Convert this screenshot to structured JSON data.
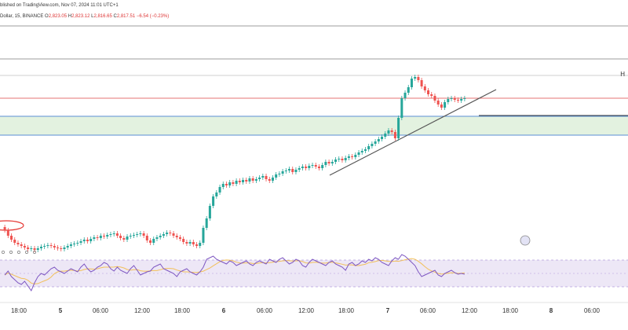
{
  "header": {
    "published": "blished on TradingView.com, Nov 07, 2024 11:01 UTC+1",
    "symbol": "Dollar, 15, BINANCE",
    "open_label": "O",
    "open": "2,823.05",
    "high_label": "H",
    "high": "2,823.12",
    "low_label": "L",
    "low": "2,816.65",
    "close_label": "C",
    "close": "2,817.51",
    "change": "−6.54 (−0.23%)"
  },
  "right_edge_label": "H",
  "colors": {
    "up": "#26a69a",
    "down": "#ef5350",
    "level_gray": "#9e9e9e",
    "level_red": "#e57373",
    "level_blue": "#5b8fd6",
    "zone_fill": "#e3f2e0",
    "trendline": "#555555",
    "rsi_line": "#7e57c2",
    "rsi_ma": "#f2c05a",
    "rsi_band": "#ede7f6"
  },
  "chart_data": {
    "type": "candlestick",
    "x_ticks": [
      "18:00",
      "5",
      "06:00",
      "12:00",
      "18:00",
      "6",
      "06:00",
      "12:00",
      "18:00",
      "7",
      "06:00",
      "12:00",
      "18:00",
      "8",
      "06:00"
    ],
    "candles_close_y": [
      293,
      300,
      305,
      309,
      311,
      313,
      315,
      317,
      316,
      318,
      316,
      314,
      313,
      312,
      313,
      315,
      316,
      317,
      315,
      313,
      311,
      310,
      309,
      307,
      305,
      307,
      304,
      302,
      303,
      300,
      301,
      299,
      298,
      297,
      300,
      303,
      305,
      301,
      300,
      299,
      298,
      297,
      300,
      306,
      309,
      304,
      302,
      300,
      298,
      296,
      297,
      300,
      302,
      304,
      308,
      310,
      308,
      311,
      313,
      309,
      290,
      278,
      262,
      250,
      245,
      238,
      234,
      236,
      232,
      234,
      230,
      232,
      229,
      231,
      227,
      230,
      228,
      226,
      224,
      228,
      230,
      226,
      222,
      221,
      218,
      217,
      215,
      219,
      216,
      214,
      212,
      214,
      211,
      210,
      212,
      214,
      210,
      206,
      208,
      206,
      203,
      202,
      204,
      201,
      199,
      200,
      197,
      194,
      192,
      190,
      186,
      183,
      180,
      177,
      174,
      170,
      166,
      168,
      176,
      150,
      125,
      118,
      111,
      100,
      98,
      102,
      110,
      115,
      120,
      122,
      128,
      133,
      137,
      130,
      126,
      125,
      127,
      128,
      126,
      125
    ],
    "support_zone": "green horizontal zone",
    "indicator": {
      "name": "RSI",
      "values": [
        350,
        345,
        352,
        356,
        360,
        362,
        358,
        364,
        370,
        360,
        352,
        348,
        350,
        346,
        342,
        340,
        344,
        346,
        348,
        345,
        342,
        344,
        346,
        340,
        336,
        342,
        346,
        344,
        340,
        338,
        334,
        336,
        342,
        345,
        340,
        344,
        346,
        348,
        342,
        338,
        344,
        350,
        348,
        346,
        345,
        340,
        338,
        336,
        342,
        344,
        346,
        348,
        352,
        346,
        344,
        342,
        346,
        348,
        350,
        346,
        340,
        330,
        328,
        326,
        330,
        332,
        334,
        336,
        332,
        334,
        338,
        336,
        334,
        332,
        336,
        338,
        334,
        332,
        334,
        336,
        330,
        332,
        334,
        330,
        328,
        332,
        336,
        334,
        330,
        332,
        338,
        340,
        334,
        330,
        332,
        334,
        336,
        338,
        334,
        332,
        336,
        338,
        340,
        344,
        336,
        334,
        338,
        336,
        332,
        334,
        330,
        332,
        328,
        330,
        334,
        336,
        338,
        332,
        328,
        330,
        324,
        326,
        330,
        334,
        338,
        346,
        352,
        350,
        348,
        346,
        344,
        350,
        352,
        348,
        346,
        344,
        347,
        349,
        348,
        349
      ]
    }
  }
}
